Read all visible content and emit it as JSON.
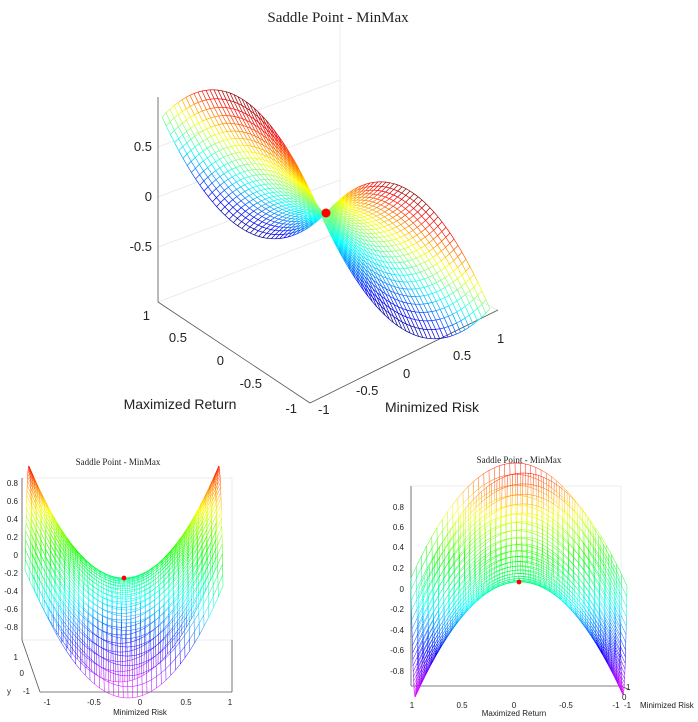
{
  "chart_data": [
    {
      "type": "surface",
      "title": "Saddle Point - MinMax",
      "xlabel": "Minimized Risk",
      "ylabel": "Maximized Return",
      "zlabel": "",
      "function": "z = x^2 - y^2",
      "xlim": [
        -1,
        1
      ],
      "ylim": [
        -1,
        1
      ],
      "zlim": [
        -1,
        1
      ],
      "x_ticks": [
        "-1",
        "-0.5",
        "0",
        "0.5",
        "1"
      ],
      "y_ticks": [
        "-1",
        "-0.5",
        "0",
        "0.5",
        "1"
      ],
      "z_ticks": [
        "-0.5",
        "0",
        "0.5"
      ],
      "saddle_point": {
        "x": 0,
        "y": 0,
        "z": 0,
        "color": "#ff0000"
      },
      "colormap": "jet",
      "grid": true
    },
    {
      "type": "surface",
      "title": "Saddle Point - MinMax",
      "xlabel": "Minimized Risk",
      "ylabel": "y",
      "function": "z = x^2 - y^2",
      "xlim": [
        -1,
        1
      ],
      "ylim": [
        -1,
        1
      ],
      "x_ticks": [
        "-1",
        "-0.5",
        "0",
        "0.5",
        "1"
      ],
      "y_ticks": [
        "-1",
        "0",
        "1"
      ],
      "z_ticks": [
        "0.8",
        "0.6",
        "0.4",
        "0.2",
        "0",
        "-0.2",
        "-0.4",
        "-0.6",
        "-0.8"
      ],
      "saddle_point": {
        "x": 0,
        "y": 0,
        "z": 0,
        "color": "#ff0000"
      },
      "colormap": "hsv",
      "grid": true
    },
    {
      "type": "surface",
      "title": "Saddle Point - MinMax",
      "xlabel": "Minimized Risk",
      "ylabel": "Maximized Return",
      "function": "z = x^2 - y^2",
      "xlim": [
        -1,
        1
      ],
      "ylim": [
        -1,
        1
      ],
      "x_ticks": [
        "-1",
        "0",
        "1"
      ],
      "y_ticks": [
        "1",
        "0.5",
        "0",
        "-0.5",
        "-1"
      ],
      "z_ticks": [
        "0.8",
        "0.6",
        "0.4",
        "0.2",
        "0",
        "-0.2",
        "-0.4",
        "-0.6",
        "-0.8"
      ],
      "saddle_point": {
        "x": 0,
        "y": 0,
        "z": 0,
        "color": "#ff0000"
      },
      "colormap": "hsv",
      "grid": true
    }
  ]
}
